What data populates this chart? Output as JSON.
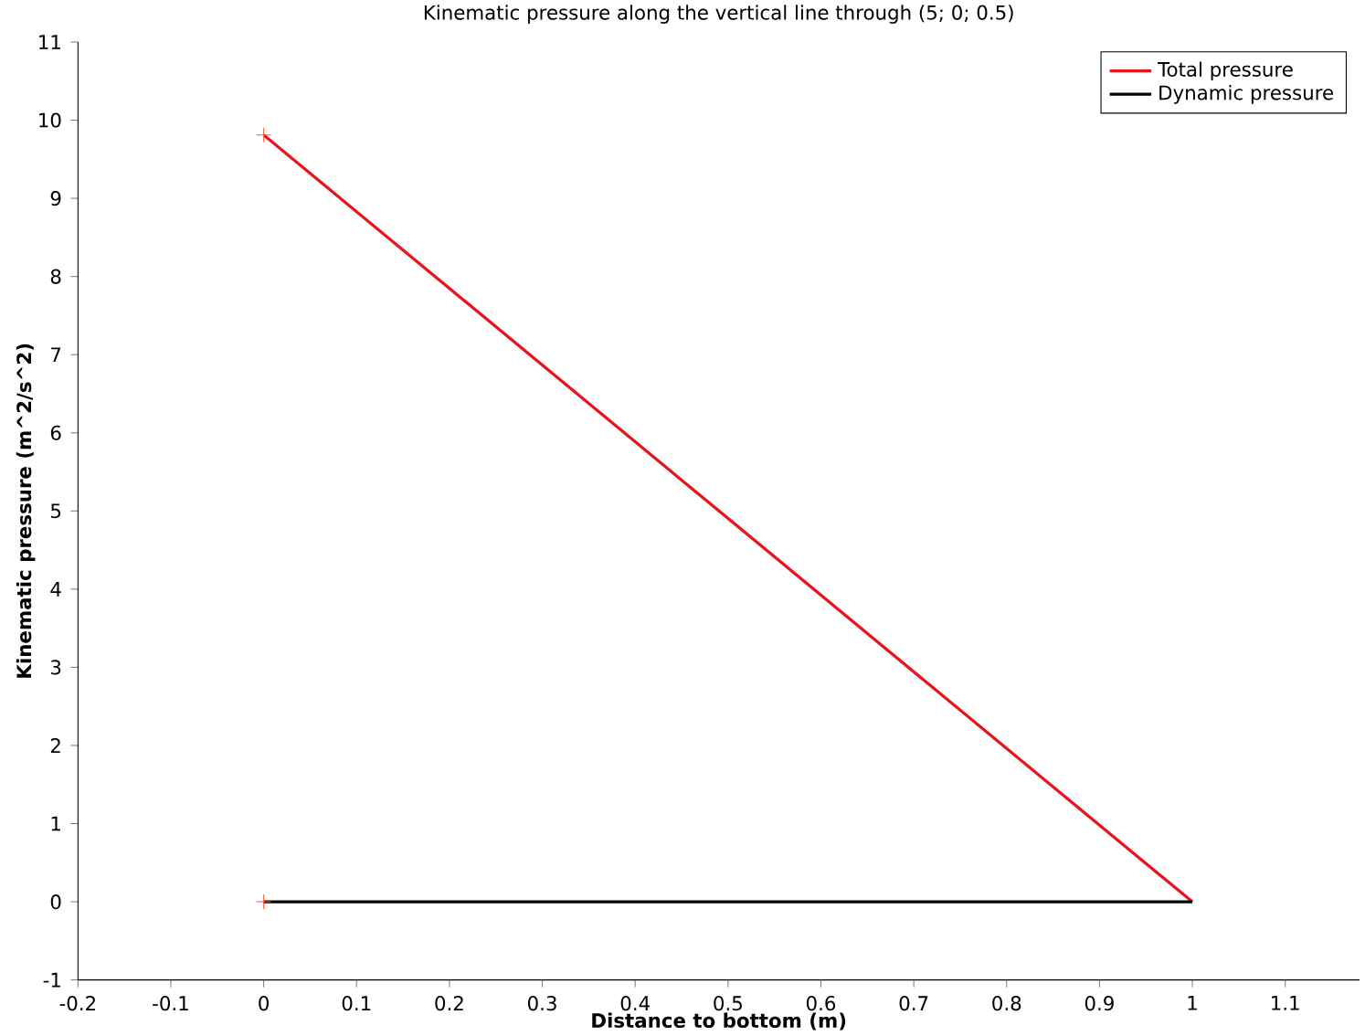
{
  "chart_data": {
    "type": "line",
    "title": "Kinematic pressure along the vertical line through (5; 0; 0.5)",
    "xlabel": "Distance to bottom (m)",
    "ylabel": "Kinematic pressure (m^2/s^2)",
    "xlim": [
      -0.2,
      1.18
    ],
    "ylim": [
      -1,
      11
    ],
    "xticks": [
      -0.2,
      -0.1,
      0,
      0.1,
      0.2,
      0.3,
      0.4,
      0.5,
      0.6,
      0.7,
      0.8,
      0.9,
      1,
      1.1
    ],
    "yticks": [
      -1,
      0,
      1,
      2,
      3,
      4,
      5,
      6,
      7,
      8,
      9,
      10,
      11
    ],
    "legend": "top right",
    "x": [
      0,
      1
    ],
    "series": [
      {
        "name": "Total pressure",
        "color": "#e8141b",
        "values": [
          9.81,
          0
        ]
      },
      {
        "name": "Dynamic pressure",
        "color": "#000000",
        "values": [
          0,
          0
        ]
      },
      {
        "type": "scatter",
        "marker": "cross",
        "color": "#ff5a36",
        "x": [
          0,
          0
        ],
        "values": [
          9.81,
          0
        ]
      }
    ]
  }
}
